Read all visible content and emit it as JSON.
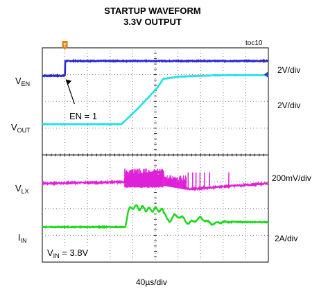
{
  "title_line1": "STARTUP WAVEFORM",
  "title_line2": "3.3V OUTPUT",
  "figure_tag": "toc10",
  "timebase": "40µs/div",
  "annotations": {
    "en_event": "EN = 1",
    "vin_main": "V",
    "vin_sub": "IN",
    "vin_value": " = 3.8V"
  },
  "channels": [
    {
      "main": "V",
      "sub": "EN",
      "scale": "2V/div",
      "color": "#2a2acc"
    },
    {
      "main": "V",
      "sub": "OUT",
      "scale": "2V/div",
      "color": "#22e0e8"
    },
    {
      "main": "V",
      "sub": "LX",
      "scale": "200mV/div",
      "color": "#e020d8"
    },
    {
      "main": "I",
      "sub": "IN",
      "scale": "2A/div",
      "color": "#19d919"
    }
  ],
  "colors": {
    "grid_major": "#000000",
    "grid_minor": "#808080",
    "trigger_marker": "#e87d10"
  },
  "chart_data": {
    "type": "line",
    "title": "STARTUP WAVEFORM 3.3V OUTPUT",
    "xlabel": "40µs/div",
    "ylabel": "",
    "x_unit": "µs",
    "xlim": [
      0,
      400
    ],
    "ylim": [
      0,
      8
    ],
    "grid": true,
    "series": [
      {
        "name": "V_EN",
        "color": "#2a2acc",
        "x": [
          0,
          40,
          40.5,
          400
        ],
        "y": [
          6.96,
          6.96,
          7.51,
          7.51
        ]
      },
      {
        "name": "V_OUT",
        "color": "#22e0e8",
        "x": [
          0,
          140,
          150,
          170,
          190,
          205,
          214,
          240,
          270,
          300,
          330,
          400
        ],
        "y": [
          5.15,
          5.15,
          5.35,
          5.75,
          6.2,
          6.55,
          6.84,
          6.92,
          6.95,
          6.97,
          6.98,
          6.98
        ]
      },
      {
        "name": "V_LX",
        "color": "#e020d8",
        "x": [
          0,
          145,
          146,
          214,
          215,
          260,
          300,
          340,
          400
        ],
        "y": [
          2.94,
          2.99,
          3.15,
          3.4,
          3.15,
          2.73,
          2.79,
          2.85,
          2.94
        ]
      },
      {
        "name": "I_IN",
        "color": "#19d919",
        "x": [
          0,
          147,
          152,
          160,
          175,
          190,
          205,
          214,
          220,
          240,
          260,
          280,
          300,
          320,
          400
        ],
        "y": [
          1.31,
          1.31,
          1.9,
          2.07,
          2.02,
          1.95,
          1.97,
          1.9,
          1.55,
          1.75,
          1.45,
          1.65,
          1.42,
          1.5,
          1.49
        ]
      }
    ]
  }
}
